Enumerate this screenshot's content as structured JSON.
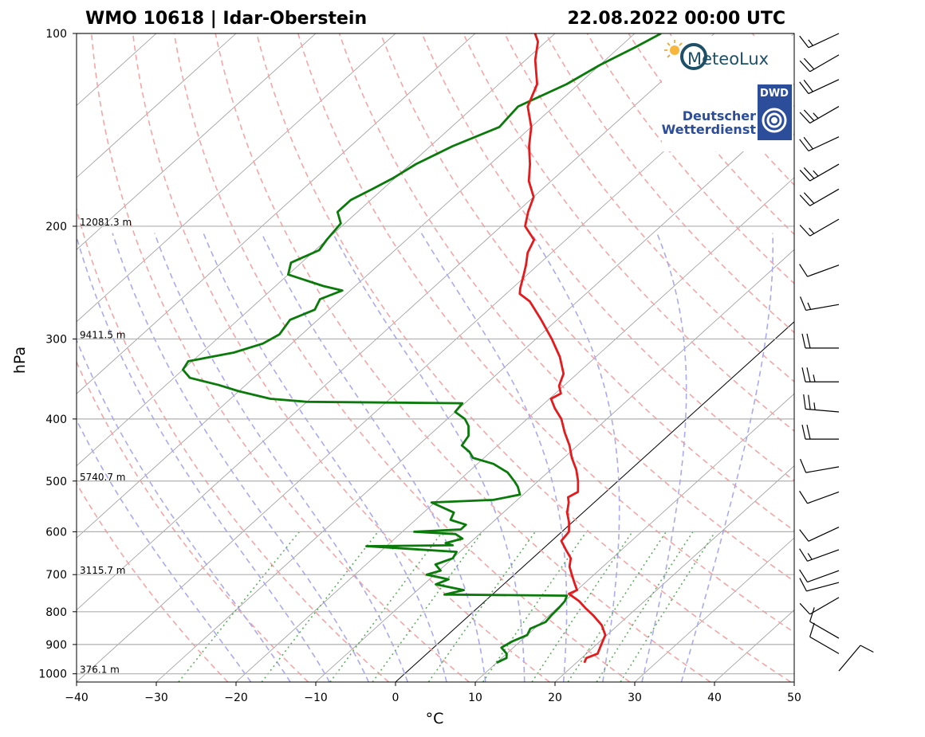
{
  "header": {
    "title_left": "WMO 10618 | Idar-Oberstein",
    "title_right": "22.08.2022 00:00 UTC"
  },
  "logos": {
    "meteolux": "MeteoLux",
    "dwd_box": "DWD",
    "dwd_line1": "Deutscher",
    "dwd_line2": "Wetterdienst"
  },
  "colors": {
    "temperature": "#e41a1c",
    "dewpoint": "#0a7a0a",
    "dry_adiabat": "#f4a6a6",
    "moist_adiabat": "#aaaaee",
    "mixing_ratio": "#55aa55",
    "isotherm": "#999999",
    "zero_isotherm": "#000000"
  },
  "chart_data": {
    "type": "line",
    "title": "WMO 10618 | Idar-Oberstein",
    "subtitle": "22.08.2022 00:00 UTC",
    "xlabel": "°C",
    "ylabel": "hPa",
    "xlim": [
      -40,
      50
    ],
    "ylim": [
      1030,
      100
    ],
    "yscale": "log",
    "grid": true,
    "skew": true,
    "x_ticks": [
      -40,
      -30,
      -20,
      -10,
      0,
      10,
      20,
      30,
      40,
      50
    ],
    "x_tick_labels": [
      "−40",
      "−30",
      "−20",
      "−10",
      "0",
      "10",
      "20",
      "30",
      "40",
      "50"
    ],
    "y_ticks": [
      100,
      200,
      300,
      400,
      500,
      600,
      700,
      800,
      900,
      1000
    ],
    "y_tick_labels": [
      "100",
      "200",
      "300",
      "400",
      "500",
      "600",
      "700",
      "800",
      "900",
      "1000"
    ],
    "height_labels": [
      {
        "p": 200,
        "text": "12081.3 m"
      },
      {
        "p": 300,
        "text": "9411.5 m"
      },
      {
        "p": 500,
        "text": "5740.7 m"
      },
      {
        "p": 700,
        "text": "3115.7 m"
      },
      {
        "p": 1000,
        "text": "376.1 m"
      }
    ],
    "series": [
      {
        "key": "temperature",
        "points": [
          [
            961,
            21.0
          ],
          [
            945,
            20.6
          ],
          [
            930,
            21.4
          ],
          [
            900,
            20.6
          ],
          [
            870,
            19.8
          ],
          [
            840,
            18.0
          ],
          [
            810,
            15.5
          ],
          [
            790,
            13.6
          ],
          [
            770,
            11.8
          ],
          [
            750,
            9.5
          ],
          [
            740,
            10.0
          ],
          [
            720,
            8.6
          ],
          [
            700,
            7.2
          ],
          [
            680,
            5.8
          ],
          [
            660,
            4.8
          ],
          [
            640,
            3.0
          ],
          [
            620,
            1.2
          ],
          [
            600,
            0.9
          ],
          [
            580,
            -0.4
          ],
          [
            560,
            -2.0
          ],
          [
            540,
            -3.2
          ],
          [
            530,
            -4.0
          ],
          [
            520,
            -3.5
          ],
          [
            500,
            -5.0
          ],
          [
            480,
            -6.8
          ],
          [
            460,
            -9.0
          ],
          [
            440,
            -11.0
          ],
          [
            420,
            -13.4
          ],
          [
            400,
            -15.7
          ],
          [
            385,
            -18.0
          ],
          [
            372,
            -19.8
          ],
          [
            365,
            -19.3
          ],
          [
            355,
            -20.6
          ],
          [
            340,
            -21.7
          ],
          [
            320,
            -24.5
          ],
          [
            300,
            -28.0
          ],
          [
            280,
            -32.0
          ],
          [
            262,
            -36.0
          ],
          [
            255,
            -38.3
          ],
          [
            250,
            -39.0
          ],
          [
            240,
            -40.2
          ],
          [
            230,
            -41.5
          ],
          [
            220,
            -43.0
          ],
          [
            210,
            -44.0
          ],
          [
            200,
            -47.0
          ],
          [
            190,
            -48.6
          ],
          [
            180,
            -50.0
          ],
          [
            170,
            -52.8
          ],
          [
            160,
            -55.0
          ],
          [
            150,
            -57.6
          ],
          [
            140,
            -60.0
          ],
          [
            130,
            -63.3
          ],
          [
            120,
            -65.2
          ],
          [
            110,
            -68.8
          ],
          [
            103,
            -71.0
          ],
          [
            100,
            -72.5
          ]
        ]
      },
      {
        "key": "dewpoint",
        "points": [
          [
            961,
            10.0
          ],
          [
            945,
            10.6
          ],
          [
            930,
            10.0
          ],
          [
            910,
            8.5
          ],
          [
            890,
            9.0
          ],
          [
            870,
            10.0
          ],
          [
            850,
            9.5
          ],
          [
            830,
            10.5
          ],
          [
            810,
            10.3
          ],
          [
            790,
            10.2
          ],
          [
            770,
            10.0
          ],
          [
            755,
            9.5
          ],
          [
            752,
            -6.0
          ],
          [
            740,
            -4.2
          ],
          [
            725,
            -8.5
          ],
          [
            712,
            -7.6
          ],
          [
            700,
            -11.0
          ],
          [
            690,
            -9.8
          ],
          [
            675,
            -11.3
          ],
          [
            660,
            -10.0
          ],
          [
            645,
            -10.4
          ],
          [
            632,
            -22.5
          ],
          [
            630,
            -11.8
          ],
          [
            625,
            -13.0
          ],
          [
            615,
            -11.5
          ],
          [
            605,
            -13.0
          ],
          [
            600,
            -18.5
          ],
          [
            595,
            -13.0
          ],
          [
            585,
            -13.0
          ],
          [
            575,
            -15.6
          ],
          [
            560,
            -16.2
          ],
          [
            540,
            -20.4
          ],
          [
            535,
            -13.0
          ],
          [
            525,
            -10.4
          ],
          [
            510,
            -11.8
          ],
          [
            500,
            -13.0
          ],
          [
            485,
            -15.0
          ],
          [
            470,
            -18.0
          ],
          [
            460,
            -21.4
          ],
          [
            450,
            -22.7
          ],
          [
            440,
            -24.5
          ],
          [
            425,
            -25.0
          ],
          [
            410,
            -26.4
          ],
          [
            400,
            -27.8
          ],
          [
            390,
            -30.0
          ],
          [
            382,
            -30.2
          ],
          [
            378,
            -30.3
          ],
          [
            376,
            -50.0
          ],
          [
            372,
            -55.0
          ],
          [
            362,
            -60.0
          ],
          [
            354,
            -63.4
          ],
          [
            345,
            -68.0
          ],
          [
            335,
            -70.0
          ],
          [
            325,
            -70.5
          ],
          [
            315,
            -66.0
          ],
          [
            305,
            -63.6
          ],
          [
            295,
            -62.8
          ],
          [
            280,
            -63.5
          ],
          [
            270,
            -61.8
          ],
          [
            260,
            -62.6
          ],
          [
            252,
            -61.0
          ],
          [
            248,
            -64.0
          ],
          [
            238,
            -70.0
          ],
          [
            228,
            -71.3
          ],
          [
            218,
            -69.5
          ],
          [
            210,
            -70.0
          ],
          [
            198,
            -70.5
          ],
          [
            190,
            -72.5
          ],
          [
            182,
            -72.5
          ],
          [
            175,
            -71.3
          ],
          [
            168,
            -70.2
          ],
          [
            160,
            -69.3
          ],
          [
            150,
            -67.2
          ],
          [
            140,
            -64.0
          ],
          [
            130,
            -64.5
          ],
          [
            120,
            -61.5
          ],
          [
            112,
            -60.0
          ],
          [
            105,
            -58.0
          ],
          [
            100,
            -56.7
          ]
        ]
      }
    ],
    "wind_barbs": [
      {
        "p": 990,
        "dir": 40,
        "kt": 10
      },
      {
        "p": 930,
        "dir": 300,
        "kt": 10
      },
      {
        "p": 880,
        "dir": 300,
        "kt": 10
      },
      {
        "p": 760,
        "dir": 240,
        "kt": 10
      },
      {
        "p": 720,
        "dir": 255,
        "kt": 10
      },
      {
        "p": 690,
        "dir": 250,
        "kt": 10
      },
      {
        "p": 640,
        "dir": 250,
        "kt": 15
      },
      {
        "p": 590,
        "dir": 245,
        "kt": 10
      },
      {
        "p": 520,
        "dir": 250,
        "kt": 10
      },
      {
        "p": 475,
        "dir": 260,
        "kt": 10
      },
      {
        "p": 430,
        "dir": 270,
        "kt": 20
      },
      {
        "p": 390,
        "dir": 275,
        "kt": 25
      },
      {
        "p": 350,
        "dir": 270,
        "kt": 25
      },
      {
        "p": 310,
        "dir": 270,
        "kt": 20
      },
      {
        "p": 265,
        "dir": 260,
        "kt": 15
      },
      {
        "p": 230,
        "dir": 250,
        "kt": 10
      },
      {
        "p": 195,
        "dir": 240,
        "kt": 15
      },
      {
        "p": 175,
        "dir": 240,
        "kt": 20
      },
      {
        "p": 160,
        "dir": 240,
        "kt": 25
      },
      {
        "p": 145,
        "dir": 245,
        "kt": 20
      },
      {
        "p": 130,
        "dir": 240,
        "kt": 25
      },
      {
        "p": 118,
        "dir": 245,
        "kt": 20
      },
      {
        "p": 108,
        "dir": 240,
        "kt": 20
      },
      {
        "p": 100,
        "dir": 245,
        "kt": 15
      }
    ],
    "dry_adiabat_thetas": [
      250,
      260,
      270,
      280,
      290,
      300,
      310,
      320,
      330,
      340,
      350,
      360,
      370,
      380,
      390,
      400,
      410,
      420,
      430,
      440,
      450,
      460
    ],
    "moist_adiabat_starts": [
      -20,
      -15,
      -10,
      -5,
      0,
      5,
      10,
      15,
      20,
      25,
      30,
      35
    ],
    "mixing_ratios": [
      0.4,
      1,
      2,
      3,
      5,
      8,
      12,
      16,
      20,
      24
    ]
  }
}
